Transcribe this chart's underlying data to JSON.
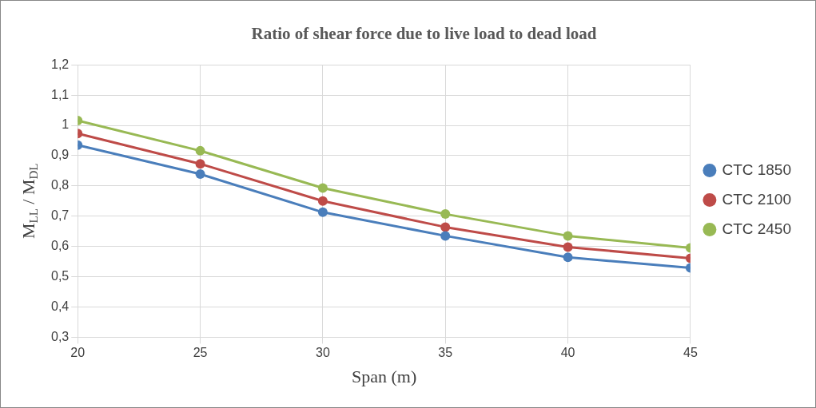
{
  "chart_data": {
    "type": "line",
    "title": "Ratio of shear force due to live load to dead load",
    "xlabel": "Span (m)",
    "ylabel": "M$_{LL}$ / M$_{DL}$",
    "x": [
      20,
      25,
      30,
      35,
      40,
      45
    ],
    "series": [
      {
        "name": "CTC 1850",
        "color": "#4a7ebb",
        "values": [
          0.935,
          0.839,
          0.713,
          0.635,
          0.564,
          0.529
        ]
      },
      {
        "name": "CTC 2100",
        "color": "#be4b48",
        "values": [
          0.973,
          0.873,
          0.75,
          0.664,
          0.598,
          0.561
        ]
      },
      {
        "name": "CTC 2450",
        "color": "#98b954",
        "values": [
          1.016,
          0.916,
          0.793,
          0.707,
          0.635,
          0.595
        ]
      }
    ],
    "xlim": [
      20,
      45
    ],
    "xticks": [
      20,
      25,
      30,
      35,
      40,
      45
    ],
    "ylim": [
      0.3,
      1.2
    ],
    "yticks": [
      {
        "value": 0.3,
        "label": "0,3"
      },
      {
        "value": 0.4,
        "label": "0,4"
      },
      {
        "value": 0.5,
        "label": "0,5"
      },
      {
        "value": 0.6,
        "label": "0,6"
      },
      {
        "value": 0.7,
        "label": "0,7"
      },
      {
        "value": 0.8,
        "label": "0,8"
      },
      {
        "value": 0.9,
        "label": "0,9"
      },
      1,
      {
        "value": 1.1,
        "label": "1,1"
      },
      {
        "value": 1.2,
        "label": "1,2"
      }
    ],
    "grid": true,
    "legend": "right",
    "marker": "circle",
    "line_style": "solid"
  }
}
